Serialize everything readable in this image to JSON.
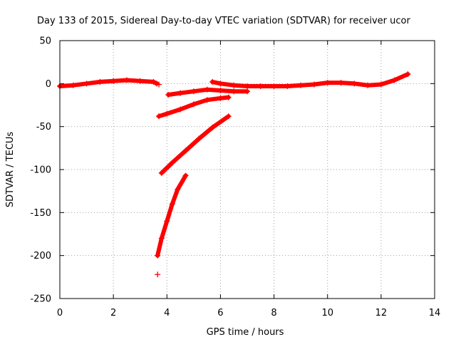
{
  "chart_data": {
    "type": "scatter",
    "title": "Day 133 of 2015, Sidereal Day-to-day VTEC variation (SDTVAR) for receiver ucor",
    "xlabel": "GPS time / hours",
    "ylabel": "SDTVAR / TECUs",
    "xlim": [
      0,
      14
    ],
    "ylim": [
      -250,
      50
    ],
    "xticks": [
      "0",
      "2",
      "4",
      "6",
      "8",
      "10",
      "12",
      "14"
    ],
    "yticks": [
      "50",
      "0",
      "-50",
      "-100",
      "-150",
      "-200",
      "-250"
    ],
    "grid": true,
    "marker": "+",
    "color": "#ff0000",
    "series": [
      {
        "points": [
          [
            0.0,
            -3
          ],
          [
            0.5,
            -2
          ],
          [
            1.0,
            0
          ],
          [
            1.5,
            2
          ],
          [
            2.0,
            3
          ],
          [
            2.5,
            4
          ],
          [
            3.0,
            3
          ],
          [
            3.5,
            2
          ],
          [
            3.62,
            0
          ]
        ]
      },
      {
        "points": [
          [
            3.7,
            -1
          ]
        ]
      },
      {
        "points": [
          [
            5.7,
            2
          ],
          [
            6.0,
            0
          ],
          [
            6.5,
            -2
          ],
          [
            7.0,
            -3
          ],
          [
            7.5,
            -3
          ],
          [
            8.0,
            -3
          ],
          [
            8.5,
            -3
          ],
          [
            9.0,
            -2
          ],
          [
            9.5,
            -1
          ],
          [
            10.0,
            1
          ],
          [
            10.5,
            1
          ],
          [
            11.0,
            0
          ],
          [
            11.5,
            -2
          ],
          [
            12.0,
            -1
          ],
          [
            12.5,
            4
          ],
          [
            13.0,
            11
          ]
        ]
      },
      {
        "points": [
          [
            4.05,
            -13
          ],
          [
            4.5,
            -11
          ],
          [
            5.0,
            -9
          ],
          [
            5.5,
            -7
          ],
          [
            6.0,
            -8
          ],
          [
            6.5,
            -9
          ],
          [
            7.0,
            -9
          ]
        ]
      },
      {
        "points": [
          [
            3.7,
            -38
          ],
          [
            4.0,
            -35
          ],
          [
            4.5,
            -30
          ],
          [
            5.0,
            -24
          ],
          [
            5.5,
            -19
          ],
          [
            6.0,
            -17
          ],
          [
            6.3,
            -16
          ]
        ]
      },
      {
        "points": [
          [
            3.8,
            -104
          ],
          [
            4.2,
            -92
          ],
          [
            4.7,
            -78
          ],
          [
            5.2,
            -64
          ],
          [
            5.7,
            -51
          ],
          [
            6.3,
            -38
          ]
        ]
      },
      {
        "points": [
          [
            3.65,
            -200
          ],
          [
            3.8,
            -180
          ],
          [
            4.0,
            -160
          ],
          [
            4.2,
            -140
          ],
          [
            4.4,
            -123
          ],
          [
            4.7,
            -107
          ]
        ]
      },
      {
        "points": [
          [
            3.65,
            -222
          ]
        ]
      }
    ]
  }
}
